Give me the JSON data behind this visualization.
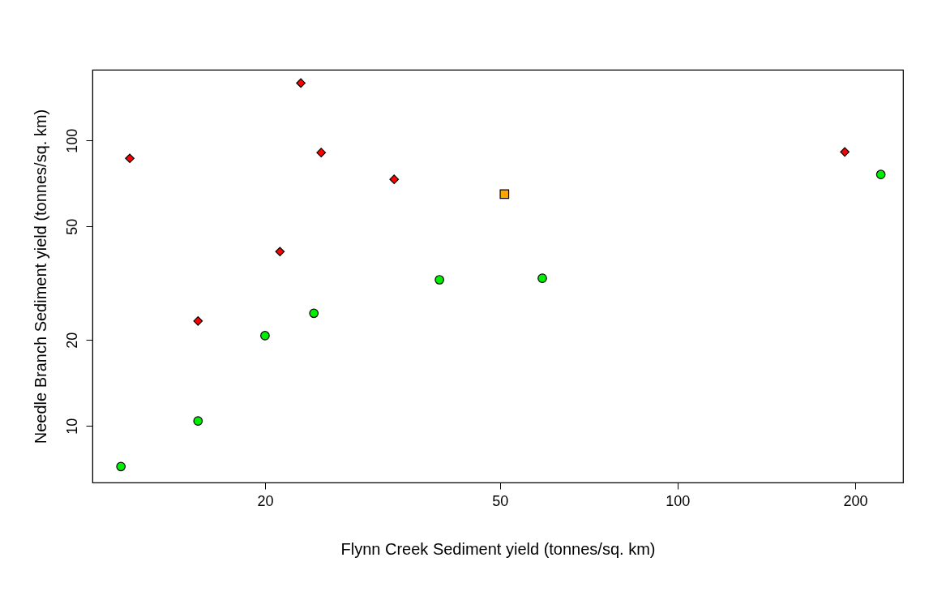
{
  "chart_data": {
    "type": "scatter",
    "xlabel": "Flynn Creek Sediment yield (tonnes/sq. km)",
    "ylabel": "Needle Branch Sediment yield (tonnes/sq. km)",
    "log": "xy",
    "xlim": [
      10.2,
      241
    ],
    "ylim": [
      6.33,
      177
    ],
    "xticks": [
      20,
      50,
      100,
      200
    ],
    "yticks": [
      10,
      20,
      50,
      100
    ],
    "grid": false,
    "series": [
      {
        "color": "#ff0000",
        "marker": "diamond",
        "x": [
          11.8,
          23.0,
          24.9,
          33.1,
          21.2,
          15.4,
          192
        ],
        "values": [
          86.6,
          159,
          90.7,
          73.1,
          40.8,
          23.3,
          91.2
        ]
      },
      {
        "color": "#ffa500",
        "marker": "square",
        "x": [
          50.9
        ],
        "values": [
          64.9
        ]
      },
      {
        "color": "#00ee00",
        "marker": "circle",
        "x": [
          11.4,
          15.4,
          20.0,
          24.2,
          39.5,
          59.0,
          221
        ],
        "values": [
          7.2,
          10.4,
          20.7,
          24.8,
          32.5,
          32.9,
          76.0
        ]
      }
    ]
  }
}
